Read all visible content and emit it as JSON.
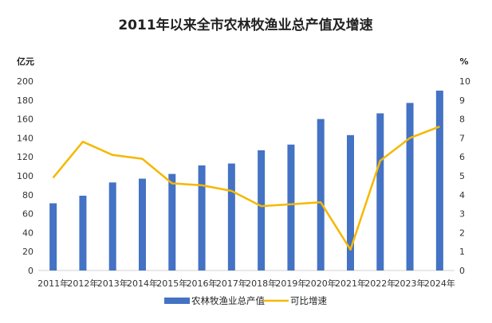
{
  "chart_data": {
    "type": "bar",
    "title": "2011年以来全市农林牧渔业总产值及增速",
    "left_unit": "亿元",
    "right_unit": "%",
    "categories": [
      "2011年",
      "2012年",
      "2013年",
      "2014年",
      "2015年",
      "2016年",
      "2017年",
      "2018年",
      "2019年",
      "2020年",
      "2021年",
      "2022年",
      "2023年",
      "2024年"
    ],
    "series": [
      {
        "name": "农林牧渔业总产值",
        "kind": "bar",
        "axis": "left",
        "color": "#4472C4",
        "values": [
          71,
          79,
          93,
          97,
          102,
          111,
          113,
          127,
          133,
          160,
          143,
          166,
          177,
          190
        ]
      },
      {
        "name": "可比增速",
        "kind": "line",
        "axis": "right",
        "color": "#F5B800",
        "values": [
          4.9,
          6.8,
          6.1,
          5.9,
          4.6,
          4.5,
          4.2,
          3.4,
          3.5,
          3.6,
          1.1,
          5.8,
          7.0,
          7.6
        ]
      }
    ],
    "y_left": {
      "min": 0,
      "max": 200,
      "step": 20
    },
    "y_right": {
      "min": 0,
      "max": 10,
      "step": 1
    },
    "grid": false,
    "legend_position": "bottom"
  }
}
